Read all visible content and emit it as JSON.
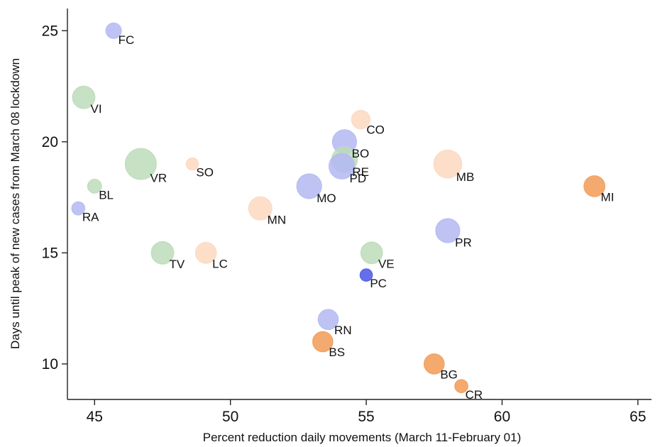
{
  "chart_data": {
    "type": "scatter",
    "title": "",
    "xlabel": "Percent reduction daily movements (March 11-February 01)",
    "ylabel": "Days until peak of new cases from March 08 lockdown",
    "xlim": [
      44,
      65.5
    ],
    "ylim": [
      8.4,
      26
    ],
    "xticks": [
      "45",
      "50",
      "55",
      "60",
      "65"
    ],
    "yticks": [
      "10",
      "15",
      "20",
      "25"
    ],
    "grid": false,
    "legend": "none",
    "colors": {
      "blue": "#b3b8f2",
      "green": "#bcdcb8",
      "peach": "#fcd8c0",
      "orange": "#f29a55",
      "dark_blue": "#4a55e8"
    },
    "points": [
      {
        "label": "FC",
        "x": 45.7,
        "y": 25,
        "size": 1.0,
        "color": "blue"
      },
      {
        "label": "VI",
        "x": 44.6,
        "y": 22,
        "size": 1.45,
        "color": "green"
      },
      {
        "label": "VR",
        "x": 46.7,
        "y": 19,
        "size": 2.0,
        "color": "green"
      },
      {
        "label": "SO",
        "x": 48.6,
        "y": 19,
        "size": 0.8,
        "color": "peach"
      },
      {
        "label": "BL",
        "x": 45.0,
        "y": 18,
        "size": 0.9,
        "color": "green"
      },
      {
        "label": "RA",
        "x": 44.4,
        "y": 17,
        "size": 0.85,
        "color": "blue"
      },
      {
        "label": "TV",
        "x": 47.5,
        "y": 15,
        "size": 1.45,
        "color": "green"
      },
      {
        "label": "LC",
        "x": 49.1,
        "y": 15,
        "size": 1.35,
        "color": "peach"
      },
      {
        "label": "MN",
        "x": 51.1,
        "y": 17,
        "size": 1.5,
        "color": "peach"
      },
      {
        "label": "MO",
        "x": 52.9,
        "y": 18,
        "size": 1.6,
        "color": "blue"
      },
      {
        "label": "CO",
        "x": 54.8,
        "y": 21,
        "size": 1.2,
        "color": "peach"
      },
      {
        "label": "BO",
        "x": 54.2,
        "y": 20,
        "size": 1.55,
        "color": "blue"
      },
      {
        "label": "RE",
        "x": 54.2,
        "y": 19.2,
        "size": 1.65,
        "color": "green"
      },
      {
        "label": "PD",
        "x": 54.1,
        "y": 18.9,
        "size": 1.65,
        "color": "blue"
      },
      {
        "label": "MB",
        "x": 58.0,
        "y": 19,
        "size": 1.8,
        "color": "peach"
      },
      {
        "label": "MI",
        "x": 63.4,
        "y": 18,
        "size": 1.35,
        "color": "orange"
      },
      {
        "label": "PR",
        "x": 58.0,
        "y": 16,
        "size": 1.55,
        "color": "blue"
      },
      {
        "label": "VE",
        "x": 55.2,
        "y": 15,
        "size": 1.4,
        "color": "green"
      },
      {
        "label": "PC",
        "x": 55.0,
        "y": 14,
        "size": 0.8,
        "color": "dark_blue"
      },
      {
        "label": "RN",
        "x": 53.6,
        "y": 12,
        "size": 1.3,
        "color": "blue"
      },
      {
        "label": "BS",
        "x": 53.4,
        "y": 11,
        "size": 1.3,
        "color": "orange"
      },
      {
        "label": "BG",
        "x": 57.5,
        "y": 10,
        "size": 1.3,
        "color": "orange"
      },
      {
        "label": "CR",
        "x": 58.5,
        "y": 9,
        "size": 0.85,
        "color": "orange"
      }
    ]
  }
}
